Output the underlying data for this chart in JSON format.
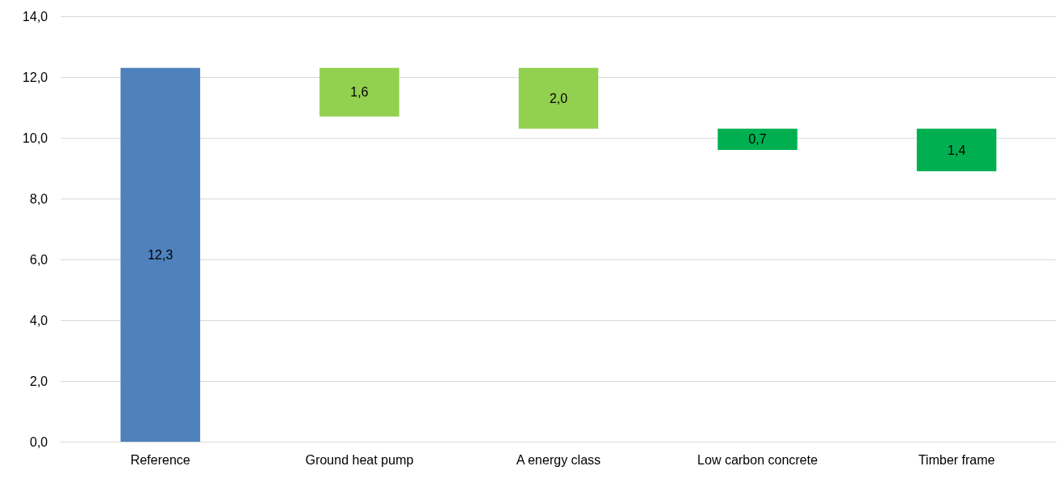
{
  "chart_data": {
    "type": "bar",
    "categories": [
      "Reference",
      "Ground heat pump",
      "A energy class",
      "Low carbon concrete",
      "Timber frame"
    ],
    "values": [
      12.3,
      1.6,
      2.0,
      0.7,
      1.4
    ],
    "base": [
      0,
      10.7,
      10.3,
      9.6,
      8.9
    ],
    "colors": [
      "#4f81bd",
      "#92d050",
      "#92d050",
      "#00b050",
      "#00b050"
    ],
    "value_labels": [
      "12,3",
      "1,6",
      "2,0",
      "0,7",
      "1,4"
    ],
    "ylim": [
      0,
      14
    ],
    "yticks": [
      {
        "value": 0,
        "label": "0,0"
      },
      {
        "value": 2,
        "label": "2,0"
      },
      {
        "value": 4,
        "label": "4,0"
      },
      {
        "value": 6,
        "label": "6,0"
      },
      {
        "value": 8,
        "label": "8,0"
      },
      {
        "value": 10,
        "label": "10,0"
      },
      {
        "value": 12,
        "label": "12,0"
      },
      {
        "value": 14,
        "label": "14,0"
      }
    ],
    "grid": "y"
  }
}
